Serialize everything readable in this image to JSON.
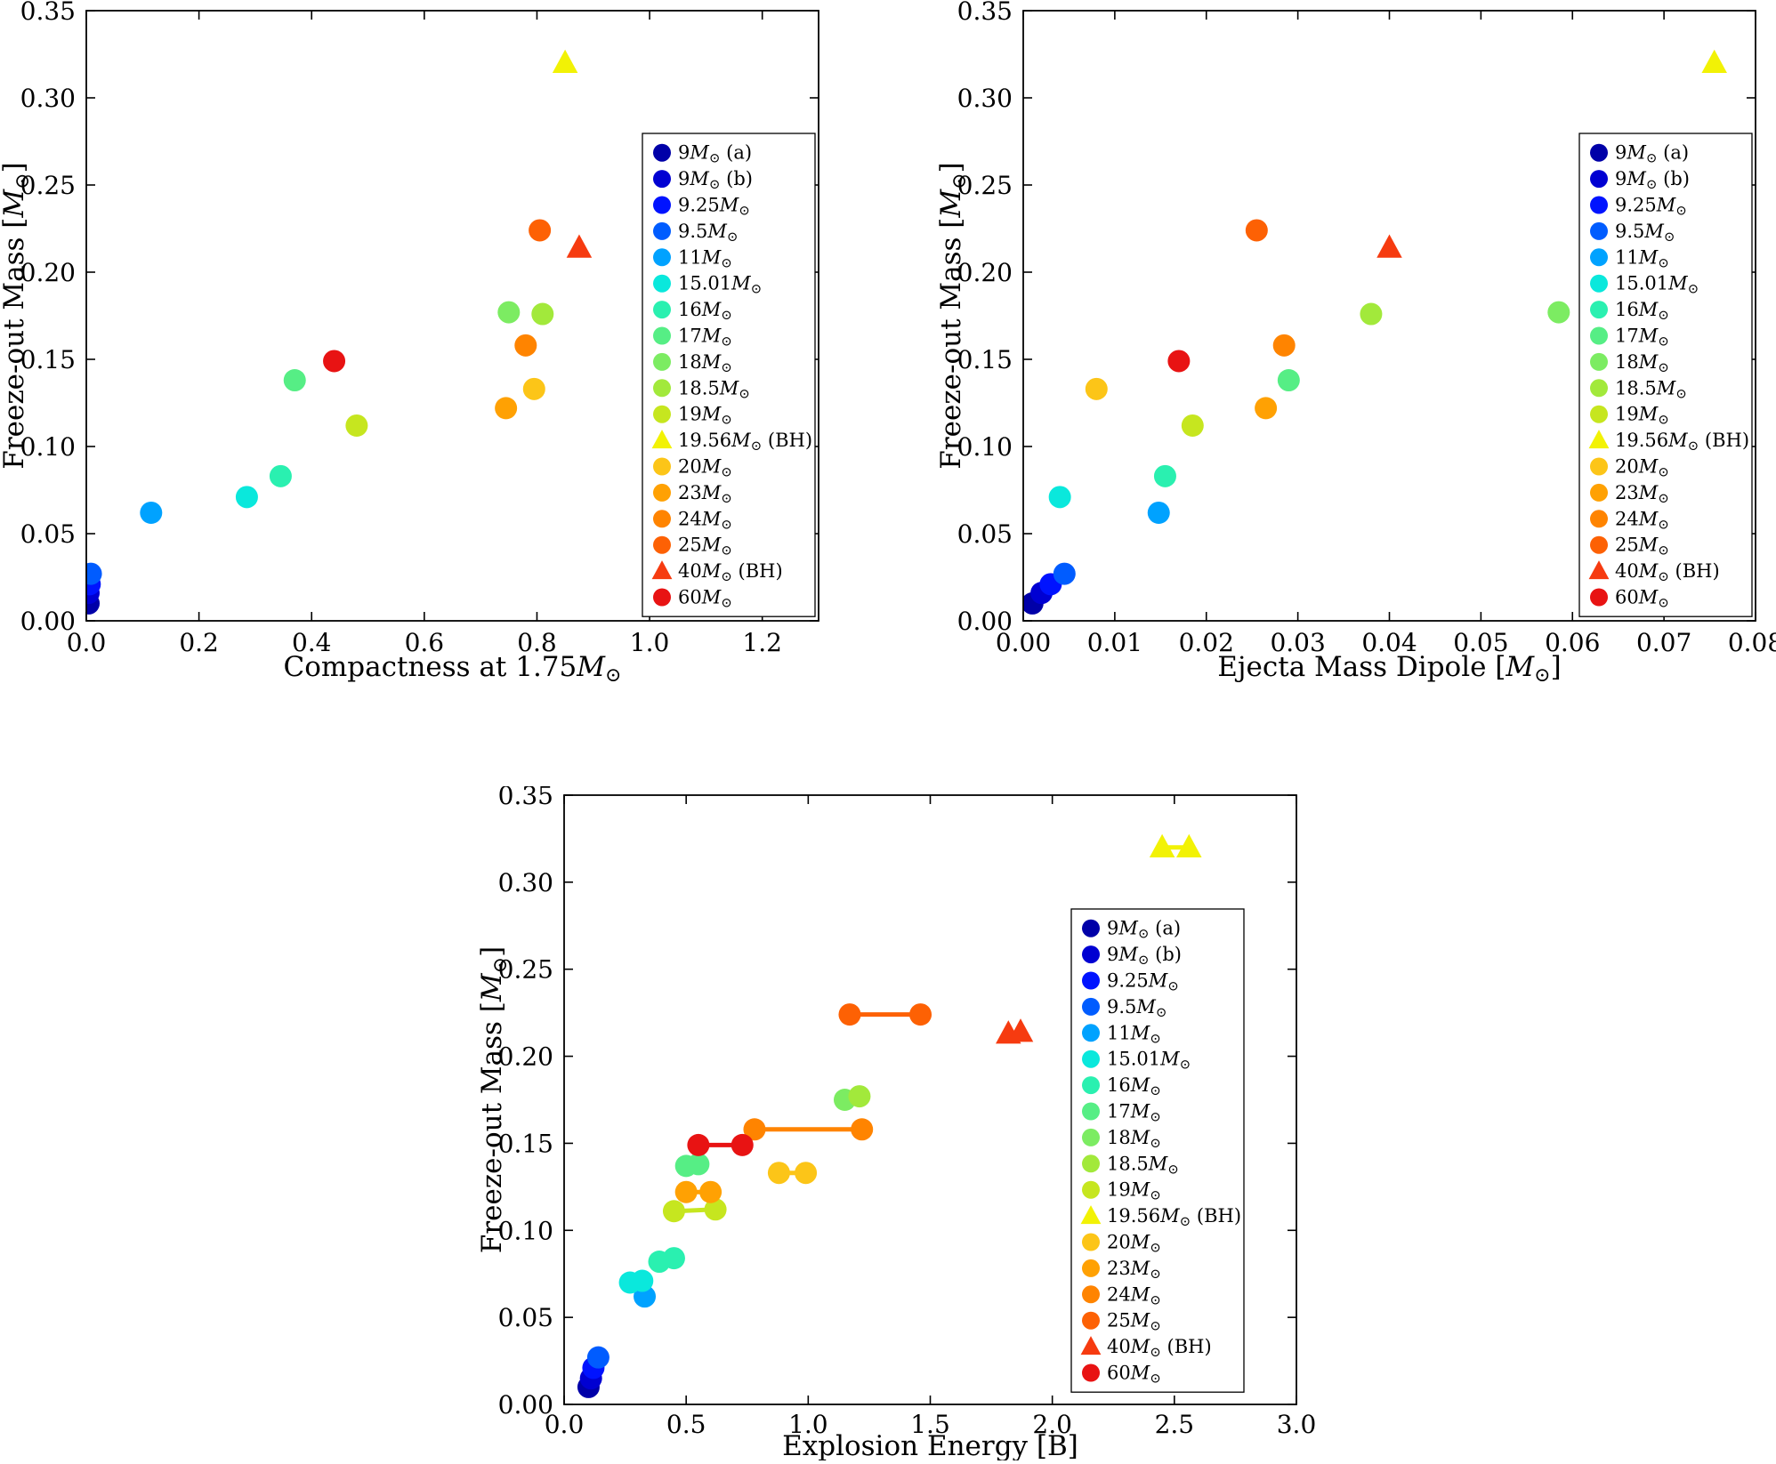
{
  "figure": {
    "background": "#ffffff",
    "ylabel_shared": "Freeze-out Mass [M⊙]"
  },
  "chart_data": [
    {
      "type": "scatter",
      "title": "",
      "xlabel": "Compactness at 1.75M⊙",
      "ylabel": "Freeze-out Mass [M⊙]",
      "xlim": [
        0,
        1.3
      ],
      "ylim": [
        0,
        0.35
      ],
      "grid": false,
      "legend_position": "right-inside",
      "xticks": {
        "values": [
          0,
          0.2,
          0.4,
          0.6,
          0.8,
          1.0,
          1.2
        ],
        "labels": [
          "0.0",
          "0.2",
          "0.4",
          "0.6",
          "0.8",
          "1.0",
          "1.2"
        ]
      },
      "yticks": {
        "values": [
          0,
          0.05,
          0.1,
          0.15,
          0.2,
          0.25,
          0.3,
          0.35
        ],
        "labels": [
          "0.00",
          "0.05",
          "0.10",
          "0.15",
          "0.20",
          "0.25",
          "0.30",
          "0.35"
        ]
      },
      "series": [
        {
          "name": "9M⊙ (a)",
          "color": "#0000a8",
          "marker": "circle",
          "points": [
            [
              0.004,
              0.01
            ]
          ]
        },
        {
          "name": "9M⊙ (b)",
          "color": "#0000d2",
          "marker": "circle",
          "points": [
            [
              0.004,
              0.016
            ]
          ]
        },
        {
          "name": "9.25M⊙",
          "color": "#0013ff",
          "marker": "circle",
          "points": [
            [
              0.006,
              0.021
            ]
          ]
        },
        {
          "name": "9.5M⊙",
          "color": "#005cff",
          "marker": "circle",
          "points": [
            [
              0.008,
              0.027
            ]
          ]
        },
        {
          "name": "11M⊙",
          "color": "#00a2ff",
          "marker": "circle",
          "points": [
            [
              0.115,
              0.062
            ]
          ]
        },
        {
          "name": "15.01M⊙",
          "color": "#0ae8dc",
          "marker": "circle",
          "points": [
            [
              0.285,
              0.071
            ]
          ]
        },
        {
          "name": "16M⊙",
          "color": "#2af0b0",
          "marker": "circle",
          "points": [
            [
              0.345,
              0.083
            ]
          ]
        },
        {
          "name": "17M⊙",
          "color": "#56ee85",
          "marker": "circle",
          "points": [
            [
              0.37,
              0.138
            ]
          ]
        },
        {
          "name": "18M⊙",
          "color": "#7cec62",
          "marker": "circle",
          "points": [
            [
              0.75,
              0.177
            ]
          ]
        },
        {
          "name": "18.5M⊙",
          "color": "#a2e93b",
          "marker": "circle",
          "points": [
            [
              0.81,
              0.176
            ]
          ]
        },
        {
          "name": "19M⊙",
          "color": "#c6e61f",
          "marker": "circle",
          "points": [
            [
              0.48,
              0.112
            ]
          ]
        },
        {
          "name": "19.56M⊙ (BH)",
          "color": "#f2f205",
          "marker": "triangle",
          "points": [
            [
              0.85,
              0.32
            ]
          ]
        },
        {
          "name": "20M⊙",
          "color": "#fcc518",
          "marker": "circle",
          "points": [
            [
              0.795,
              0.133
            ]
          ]
        },
        {
          "name": "23M⊙",
          "color": "#ffa103",
          "marker": "circle",
          "points": [
            [
              0.745,
              0.122
            ]
          ]
        },
        {
          "name": "24M⊙",
          "color": "#ff8400",
          "marker": "circle",
          "points": [
            [
              0.78,
              0.158
            ]
          ]
        },
        {
          "name": "25M⊙",
          "color": "#fd6104",
          "marker": "circle",
          "points": [
            [
              0.805,
              0.224
            ]
          ]
        },
        {
          "name": "40M⊙ (BH)",
          "color": "#f63b10",
          "marker": "triangle",
          "points": [
            [
              0.875,
              0.214
            ]
          ]
        },
        {
          "name": "60M⊙",
          "color": "#e81313",
          "marker": "circle",
          "points": [
            [
              0.44,
              0.149
            ]
          ]
        }
      ]
    },
    {
      "type": "scatter",
      "title": "",
      "xlabel": "Ejecta Mass Dipole [M⊙]",
      "ylabel": "Freeze-out Mass [M⊙]",
      "xlim": [
        0,
        0.08
      ],
      "ylim": [
        0,
        0.35
      ],
      "grid": false,
      "legend_position": "right-inside",
      "xticks": {
        "values": [
          0,
          0.01,
          0.02,
          0.03,
          0.04,
          0.05,
          0.06,
          0.07,
          0.08
        ],
        "labels": [
          "0.00",
          "0.01",
          "0.02",
          "0.03",
          "0.04",
          "0.05",
          "0.06",
          "0.07",
          "0.08"
        ]
      },
      "yticks": {
        "values": [
          0,
          0.05,
          0.1,
          0.15,
          0.2,
          0.25,
          0.3,
          0.35
        ],
        "labels": [
          "0.00",
          "0.05",
          "0.10",
          "0.15",
          "0.20",
          "0.25",
          "0.30",
          "0.35"
        ]
      },
      "series": [
        {
          "name": "9M⊙ (a)",
          "color": "#0000a8",
          "marker": "circle",
          "points": [
            [
              0.001,
              0.01
            ]
          ]
        },
        {
          "name": "9M⊙ (b)",
          "color": "#0000d2",
          "marker": "circle",
          "points": [
            [
              0.002,
              0.016
            ]
          ]
        },
        {
          "name": "9.25M⊙",
          "color": "#0013ff",
          "marker": "circle",
          "points": [
            [
              0.003,
              0.021
            ]
          ]
        },
        {
          "name": "9.5M⊙",
          "color": "#005cff",
          "marker": "circle",
          "points": [
            [
              0.0045,
              0.027
            ]
          ]
        },
        {
          "name": "11M⊙",
          "color": "#00a2ff",
          "marker": "circle",
          "points": [
            [
              0.0148,
              0.062
            ]
          ]
        },
        {
          "name": "15.01M⊙",
          "color": "#0ae8dc",
          "marker": "circle",
          "points": [
            [
              0.004,
              0.071
            ]
          ]
        },
        {
          "name": "16M⊙",
          "color": "#2af0b0",
          "marker": "circle",
          "points": [
            [
              0.0155,
              0.083
            ]
          ]
        },
        {
          "name": "17M⊙",
          "color": "#56ee85",
          "marker": "circle",
          "points": [
            [
              0.029,
              0.138
            ]
          ]
        },
        {
          "name": "18M⊙",
          "color": "#7cec62",
          "marker": "circle",
          "points": [
            [
              0.0585,
              0.177
            ]
          ]
        },
        {
          "name": "18.5M⊙",
          "color": "#a2e93b",
          "marker": "circle",
          "points": [
            [
              0.038,
              0.176
            ]
          ]
        },
        {
          "name": "19M⊙",
          "color": "#c6e61f",
          "marker": "circle",
          "points": [
            [
              0.0185,
              0.112
            ]
          ]
        },
        {
          "name": "19.56M⊙ (BH)",
          "color": "#f2f205",
          "marker": "triangle",
          "points": [
            [
              0.0755,
              0.32
            ]
          ]
        },
        {
          "name": "20M⊙",
          "color": "#fcc518",
          "marker": "circle",
          "points": [
            [
              0.008,
              0.133
            ]
          ]
        },
        {
          "name": "23M⊙",
          "color": "#ffa103",
          "marker": "circle",
          "points": [
            [
              0.0265,
              0.122
            ]
          ]
        },
        {
          "name": "24M⊙",
          "color": "#ff8400",
          "marker": "circle",
          "points": [
            [
              0.0285,
              0.158
            ]
          ]
        },
        {
          "name": "25M⊙",
          "color": "#fd6104",
          "marker": "circle",
          "points": [
            [
              0.0255,
              0.224
            ]
          ]
        },
        {
          "name": "40M⊙ (BH)",
          "color": "#f63b10",
          "marker": "triangle",
          "points": [
            [
              0.04,
              0.214
            ]
          ]
        },
        {
          "name": "60M⊙",
          "color": "#e81313",
          "marker": "circle",
          "points": [
            [
              0.017,
              0.149
            ]
          ]
        }
      ]
    },
    {
      "type": "scatter",
      "title": "",
      "xlabel": "Explosion Energy [B]",
      "ylabel": "Freeze-out Mass [M⊙]",
      "xlim": [
        0,
        3.0
      ],
      "ylim": [
        0,
        0.35
      ],
      "grid": false,
      "legend_position": "right-inside",
      "xticks": {
        "values": [
          0,
          0.5,
          1.0,
          1.5,
          2.0,
          2.5,
          3.0
        ],
        "labels": [
          "0.0",
          "0.5",
          "1.0",
          "1.5",
          "2.0",
          "2.5",
          "3.0"
        ]
      },
      "yticks": {
        "values": [
          0,
          0.05,
          0.1,
          0.15,
          0.2,
          0.25,
          0.3,
          0.35
        ],
        "labels": [
          "0.00",
          "0.05",
          "0.10",
          "0.15",
          "0.20",
          "0.25",
          "0.30",
          "0.35"
        ]
      },
      "series": [
        {
          "name": "9M⊙ (a)",
          "color": "#0000a8",
          "marker": "circle",
          "points": [
            [
              0.1,
              0.01
            ]
          ]
        },
        {
          "name": "9M⊙ (b)",
          "color": "#0000d2",
          "marker": "circle",
          "points": [
            [
              0.11,
              0.015
            ]
          ]
        },
        {
          "name": "9.25M⊙",
          "color": "#0013ff",
          "marker": "circle",
          "points": [
            [
              0.12,
              0.021
            ]
          ]
        },
        {
          "name": "9.5M⊙",
          "color": "#005cff",
          "marker": "circle",
          "points": [
            [
              0.14,
              0.027
            ]
          ]
        },
        {
          "name": "11M⊙",
          "color": "#00a2ff",
          "marker": "circle",
          "points": [
            [
              0.33,
              0.062
            ]
          ]
        },
        {
          "name": "15.01M⊙",
          "color": "#0ae8dc",
          "marker": "circle",
          "points": [
            [
              0.27,
              0.07
            ],
            [
              0.32,
              0.071
            ]
          ]
        },
        {
          "name": "16M⊙",
          "color": "#2af0b0",
          "marker": "circle",
          "points": [
            [
              0.39,
              0.082
            ],
            [
              0.45,
              0.084
            ]
          ]
        },
        {
          "name": "17M⊙",
          "color": "#56ee85",
          "marker": "circle",
          "points": [
            [
              0.5,
              0.137
            ],
            [
              0.55,
              0.138
            ]
          ]
        },
        {
          "name": "18M⊙",
          "color": "#7cec62",
          "marker": "circle",
          "points": [
            [
              1.15,
              0.175
            ]
          ]
        },
        {
          "name": "18.5M⊙",
          "color": "#a2e93b",
          "marker": "circle",
          "points": [
            [
              1.21,
              0.177
            ]
          ]
        },
        {
          "name": "19M⊙",
          "color": "#c6e61f",
          "marker": "circle",
          "points": [
            [
              0.45,
              0.111
            ],
            [
              0.62,
              0.112
            ]
          ]
        },
        {
          "name": "19.56M⊙ (BH)",
          "color": "#f2f205",
          "marker": "triangle",
          "points": [
            [
              2.45,
              0.32
            ],
            [
              2.56,
              0.32
            ]
          ]
        },
        {
          "name": "20M⊙",
          "color": "#fcc518",
          "marker": "circle",
          "points": [
            [
              0.88,
              0.133
            ],
            [
              0.99,
              0.133
            ]
          ]
        },
        {
          "name": "23M⊙",
          "color": "#ffa103",
          "marker": "circle",
          "points": [
            [
              0.5,
              0.122
            ],
            [
              0.6,
              0.122
            ]
          ]
        },
        {
          "name": "24M⊙",
          "color": "#ff8400",
          "marker": "circle",
          "points": [
            [
              0.78,
              0.158
            ],
            [
              1.22,
              0.158
            ]
          ]
        },
        {
          "name": "25M⊙",
          "color": "#fd6104",
          "marker": "circle",
          "points": [
            [
              1.17,
              0.224
            ],
            [
              1.46,
              0.224
            ]
          ]
        },
        {
          "name": "40M⊙ (BH)",
          "color": "#f63b10",
          "marker": "triangle",
          "points": [
            [
              1.82,
              0.213
            ],
            [
              1.87,
              0.214
            ]
          ]
        },
        {
          "name": "60M⊙",
          "color": "#e81313",
          "marker": "circle",
          "points": [
            [
              0.55,
              0.149
            ],
            [
              0.73,
              0.149
            ]
          ]
        }
      ]
    }
  ]
}
